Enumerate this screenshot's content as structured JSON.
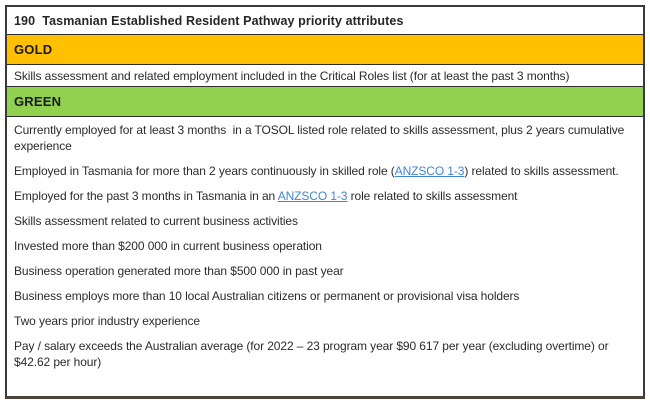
{
  "title": "190  Tasmanian Established Resident Pathway priority attributes",
  "colors": {
    "gold": "#FFC000",
    "green": "#92D050",
    "link": "#4285D4",
    "border": "#3a3a3a"
  },
  "sections": [
    {
      "id": "gold",
      "label": "GOLD",
      "items": [
        {
          "parts": [
            {
              "text": "Skills assessment and related employment included in the Critical Roles list (for at least the past 3 months)"
            }
          ]
        }
      ]
    },
    {
      "id": "green",
      "label": "GREEN",
      "items": [
        {
          "parts": [
            {
              "text": "Currently employed for at least 3 months  in a TOSOL listed role related to skills assessment, plus 2 years cumulative experience"
            }
          ]
        },
        {
          "parts": [
            {
              "text": "Employed in Tasmania for more than 2 years continuously in skilled role ("
            },
            {
              "text": "ANZSCO 1-3",
              "link": true
            },
            {
              "text": ") related to skills assessment."
            }
          ]
        },
        {
          "parts": [
            {
              "text": "Employed for the past 3 months in Tasmania in an "
            },
            {
              "text": "ANZSCO 1-3",
              "link": true
            },
            {
              "text": " role related to skills assessment"
            }
          ]
        },
        {
          "parts": [
            {
              "text": "Skills assessment related to current business activities"
            }
          ]
        },
        {
          "parts": [
            {
              "text": "Invested more than $200 000 in current business operation"
            }
          ]
        },
        {
          "parts": [
            {
              "text": "Business operation generated more than $500 000 in past year"
            }
          ]
        },
        {
          "parts": [
            {
              "text": "Business employs more than 10 local Australian citizens or permanent or provisional visa holders"
            }
          ]
        },
        {
          "parts": [
            {
              "text": "Two years prior industry experience"
            }
          ]
        },
        {
          "parts": [
            {
              "text": "Pay / salary exceeds the Australian average (for 2022 – 23 program year $90 617 per year (excluding overtime) or $42.62 per hour)"
            }
          ]
        }
      ]
    }
  ]
}
